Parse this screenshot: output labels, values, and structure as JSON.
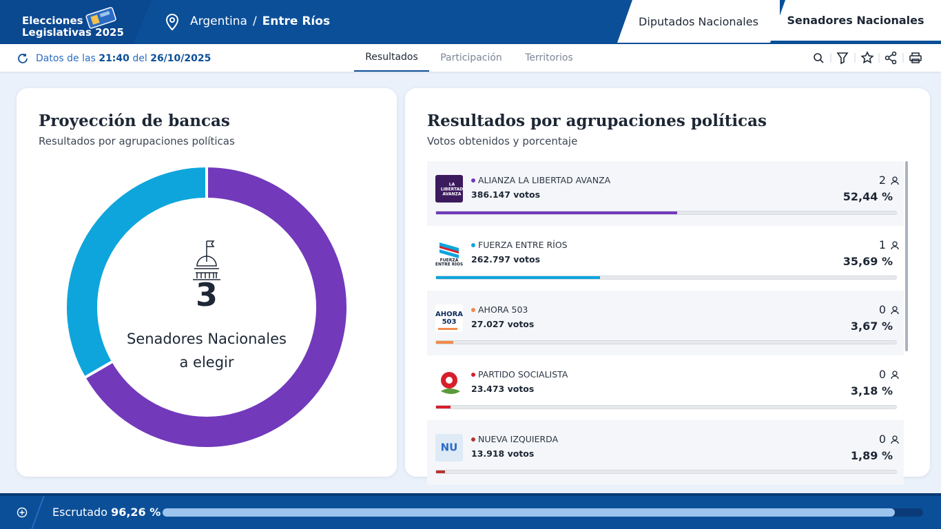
{
  "header": {
    "brand": [
      "Elecciones",
      "Legislativas 2025"
    ],
    "breadcrumb": {
      "country": "Argentina",
      "separator": "/",
      "province": "Entre Ríos"
    },
    "tabs": [
      "Diputados Nacionales",
      "Senadores Nacionales"
    ],
    "active_tab": 1
  },
  "toolbar": {
    "updated": {
      "prefix": "Datos de las",
      "time": "21:40",
      "connector": "del",
      "date": "26/10/2025"
    },
    "nav": [
      "Resultados",
      "Participación",
      "Territorios"
    ],
    "active_nav": 0
  },
  "seats_card": {
    "title": "Proyección de bancas",
    "subtitle": "Resultados por agrupaciones políticas",
    "total": 3,
    "total_label": [
      "Senadores Nacionales",
      "a elegir"
    ]
  },
  "results_card": {
    "title": "Resultados por agrupaciones políticas",
    "subtitle": "Votos obtenidos y porcentaje",
    "parties": [
      {
        "name": "ALIANZA LA LIBERTAD AVANZA",
        "color": "#7239bb",
        "votes": "386.147 votos",
        "seats": 2,
        "percent": 52.44,
        "percent_label": "52,44 %",
        "logo_text": [
          "LA",
          "LIBERTAD",
          "AVANZA"
        ]
      },
      {
        "name": "FUERZA ENTRE RÍOS",
        "color": "#0ea5dc",
        "votes": "262.797 votos",
        "seats": 1,
        "percent": 35.69,
        "percent_label": "35,69 %",
        "logo_text": [
          "FUERZA",
          "ENTRE RÍOS"
        ]
      },
      {
        "name": "AHORA 503",
        "color": "#f28a4c",
        "votes": "27.027 votos",
        "seats": 0,
        "percent": 3.67,
        "percent_label": "3,67 %",
        "logo_text": [
          "AHORA",
          "503"
        ]
      },
      {
        "name": "PARTIDO SOCIALISTA",
        "color": "#d81e2b",
        "votes": "23.473 votos",
        "seats": 0,
        "percent": 3.18,
        "percent_label": "3,18 %"
      },
      {
        "name": "NUEVA IZQUIERDA",
        "color": "#b5352f",
        "votes": "13.918 votos",
        "seats": 0,
        "percent": 1.89,
        "percent_label": "1,89 %",
        "logo_text": [
          "NU"
        ]
      }
    ]
  },
  "footer": {
    "label": "Escrutado",
    "value_label": "96,26 %",
    "value": 96.26
  }
}
